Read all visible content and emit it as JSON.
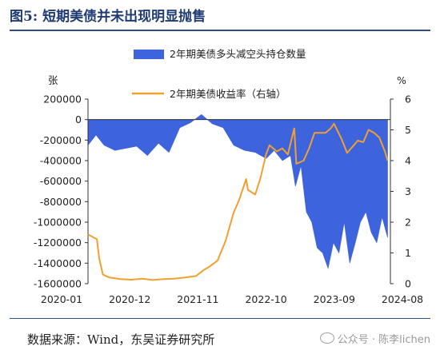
{
  "figure": {
    "label": "图5:",
    "title": "短期美债并未出现明显抛售"
  },
  "source_text": "数据来源：Wind，东吴证券研究所",
  "watermark_text": "公众号 · 陈李lichen",
  "colors": {
    "position_fill": "#3d63dd",
    "yield_line": "#f0a030",
    "title": "#1f3b73",
    "rule": "#2f4f86"
  },
  "chart_data": {
    "type": "area",
    "left_axis_unit": "张",
    "right_axis_unit": "%",
    "x_tick_labels": [
      "2020-01",
      "2020-12",
      "2021-11",
      "2022-10",
      "2023-09",
      "2024-08"
    ],
    "xlim": [
      "2020-01-01",
      "2024-08-31"
    ],
    "left_ylim": [
      -1600000,
      200000
    ],
    "left_yticks": [
      200000,
      0,
      -200000,
      -400000,
      -600000,
      -800000,
      -1000000,
      -1200000,
      -1400000,
      -1600000
    ],
    "left_ytick_labels": [
      "200000",
      "0",
      "-200000",
      "-400000",
      "-600000",
      "-800000",
      "-1000000",
      "-1200000",
      "-1400000",
      "-1600000"
    ],
    "right_ylim": [
      0,
      6
    ],
    "right_yticks": [
      0,
      1,
      2,
      3,
      4,
      5,
      6
    ],
    "right_ytick_labels": [
      "0",
      "1",
      "2",
      "3",
      "4",
      "5",
      "6"
    ],
    "legend_placement": "top",
    "grid": false,
    "series": [
      {
        "name": "2年期美债多头减空头持仓数量",
        "type": "area",
        "axis": "left",
        "x": [
          "2020-01-01",
          "2020-02-15",
          "2020-04-01",
          "2020-06-01",
          "2020-08-01",
          "2020-10-01",
          "2020-12-01",
          "2021-02-01",
          "2021-04-01",
          "2021-06-01",
          "2021-08-01",
          "2021-10-01",
          "2021-12-01",
          "2022-02-01",
          "2022-04-01",
          "2022-06-01",
          "2022-08-01",
          "2022-10-01",
          "2022-11-15",
          "2023-01-01",
          "2023-02-15",
          "2023-03-15",
          "2023-04-15",
          "2023-05-15",
          "2023-06-15",
          "2023-07-15",
          "2023-08-15",
          "2023-09-15",
          "2023-10-15",
          "2023-11-15",
          "2023-12-15",
          "2024-01-15",
          "2024-02-15",
          "2024-03-15",
          "2024-04-15",
          "2024-05-15",
          "2024-06-15",
          "2024-07-15",
          "2024-08-15"
        ],
        "values": [
          -250000,
          -150000,
          -250000,
          -300000,
          -280000,
          -260000,
          -350000,
          -230000,
          -320000,
          -80000,
          -30000,
          50000,
          -40000,
          -80000,
          -250000,
          -300000,
          -320000,
          -380000,
          -300000,
          -400000,
          -350000,
          -650000,
          -450000,
          -900000,
          -1000000,
          -1250000,
          -1300000,
          -1450000,
          -1200000,
          -1300000,
          -1000000,
          -1400000,
          -1200000,
          -1000000,
          -900000,
          -1100000,
          -1200000,
          -950000,
          -1150000
        ]
      },
      {
        "name": "2年期美债收益率（右轴）",
        "type": "line",
        "axis": "right",
        "x": [
          "2020-01-01",
          "2020-02-20",
          "2020-03-05",
          "2020-03-25",
          "2020-05-01",
          "2020-07-01",
          "2020-09-01",
          "2020-11-01",
          "2021-01-01",
          "2021-03-01",
          "2021-05-01",
          "2021-07-01",
          "2021-09-01",
          "2021-10-15",
          "2021-11-15",
          "2021-12-31",
          "2022-02-15",
          "2022-03-31",
          "2022-04-30",
          "2022-06-10",
          "2022-06-20",
          "2022-07-31",
          "2022-08-31",
          "2022-09-30",
          "2022-10-20",
          "2022-11-30",
          "2022-12-31",
          "2023-01-31",
          "2023-03-08",
          "2023-03-20",
          "2023-04-30",
          "2023-05-31",
          "2023-06-30",
          "2023-07-31",
          "2023-08-31",
          "2023-09-30",
          "2023-10-18",
          "2023-11-30",
          "2023-12-31",
          "2024-01-15",
          "2024-02-29",
          "2024-03-31",
          "2024-04-30",
          "2024-05-31",
          "2024-06-30",
          "2024-07-31",
          "2024-08-15"
        ],
        "values": [
          1.6,
          1.45,
          0.8,
          0.3,
          0.2,
          0.15,
          0.13,
          0.16,
          0.12,
          0.15,
          0.16,
          0.2,
          0.25,
          0.45,
          0.55,
          0.75,
          1.4,
          2.3,
          2.7,
          3.4,
          3.05,
          2.9,
          3.45,
          4.2,
          4.5,
          4.3,
          4.4,
          4.2,
          5.05,
          3.9,
          4.0,
          4.4,
          4.9,
          4.9,
          4.9,
          5.05,
          5.2,
          4.7,
          4.25,
          4.35,
          4.65,
          4.6,
          5.0,
          4.9,
          4.75,
          4.3,
          4.0
        ]
      }
    ]
  }
}
